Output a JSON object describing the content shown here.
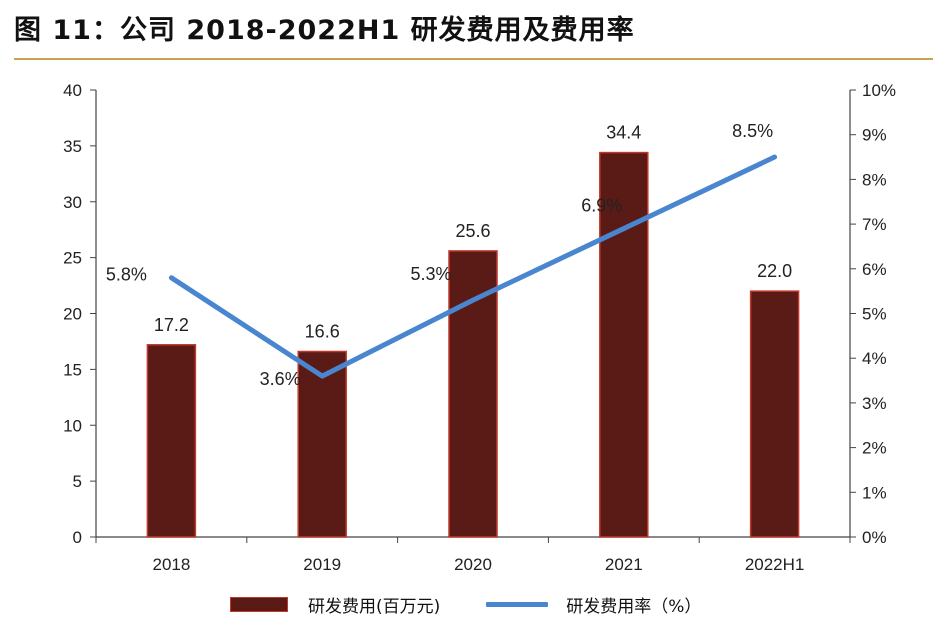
{
  "title": "图 11：公司 2018-2022H1 研发费用及费用率",
  "chart_data": {
    "type": "bar+line",
    "categories": [
      "2018",
      "2019",
      "2020",
      "2021",
      "2022H1"
    ],
    "series": [
      {
        "name": "研发费用(百万元)",
        "kind": "bar",
        "axis": "left",
        "values": [
          17.2,
          16.6,
          25.6,
          34.4,
          22.0
        ],
        "labels": [
          "17.2",
          "16.6",
          "25.6",
          "34.4",
          "22.0"
        ],
        "color": "#5a1b17",
        "edge_color": "#c0392b"
      },
      {
        "name": "研发费用率（%）",
        "kind": "line",
        "axis": "right",
        "values": [
          5.8,
          3.6,
          5.3,
          6.9,
          8.5
        ],
        "labels": [
          "5.8%",
          "3.6%",
          "5.3%",
          "6.9%",
          "8.5%"
        ],
        "color": "#4a86d0"
      }
    ],
    "left_axis": {
      "ylim": [
        0,
        40
      ],
      "ticks": [
        "0",
        "5",
        "10",
        "15",
        "20",
        "25",
        "30",
        "35",
        "40"
      ]
    },
    "right_axis": {
      "ylim": [
        0,
        10
      ],
      "ticks": [
        "0%",
        "1%",
        "2%",
        "3%",
        "4%",
        "5%",
        "6%",
        "7%",
        "8%",
        "9%",
        "10%"
      ]
    },
    "grid": false,
    "legend_position": "bottom"
  },
  "legend": {
    "bar_label": "研发费用(百万元)",
    "line_label": "研发费用率（%）"
  }
}
